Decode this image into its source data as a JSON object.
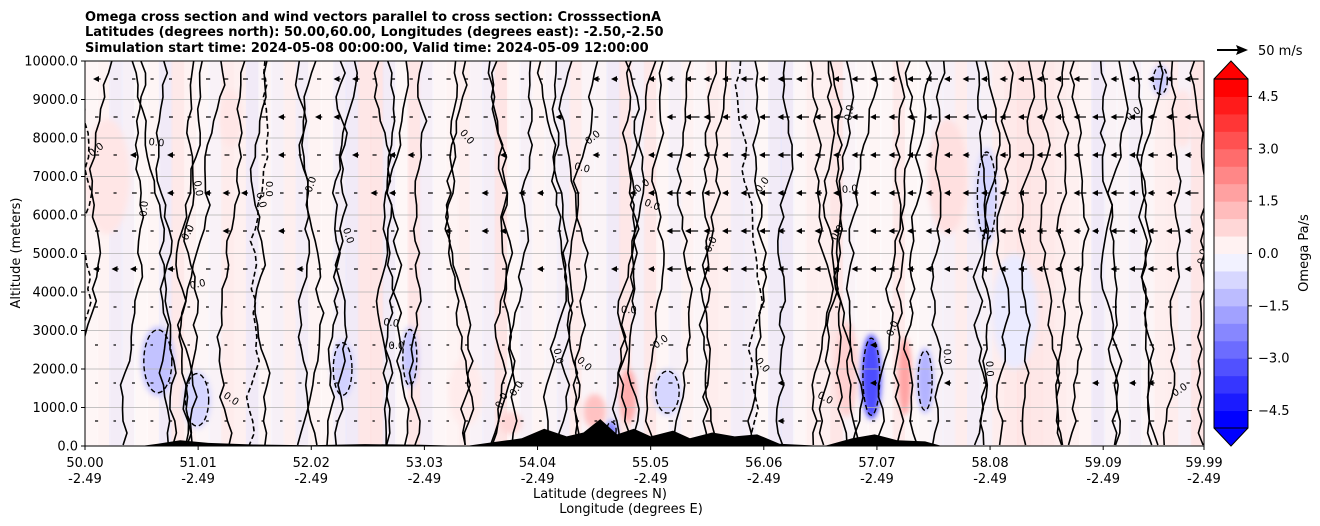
{
  "chart_data": {
    "type": "contourf",
    "title_lines": [
      "Omega cross section and wind vectors parallel to cross section: CrosssectionA",
      "Latitudes (degrees north): 50.00,60.00, Longitudes (degrees east): -2.50,-2.50",
      "Simulation start time: 2024-05-08 00:00:00, Valid time: 2024-05-09 12:00:00"
    ],
    "xlabel_lines": [
      "Latitude (degrees N)",
      "Longitude (degrees E)"
    ],
    "ylabel": "Altitude (meters)",
    "xlim": [
      50.0,
      59.99
    ],
    "ylim": [
      0,
      10000
    ],
    "x_ticks": [
      {
        "lat": "50.00",
        "lon": "-2.49",
        "pos": 50.0
      },
      {
        "lat": "51.01",
        "lon": "-2.49",
        "pos": 51.01
      },
      {
        "lat": "52.02",
        "lon": "-2.49",
        "pos": 52.02
      },
      {
        "lat": "53.03",
        "lon": "-2.49",
        "pos": 53.03
      },
      {
        "lat": "54.04",
        "lon": "-2.49",
        "pos": 54.04
      },
      {
        "lat": "55.05",
        "lon": "-2.49",
        "pos": 55.05
      },
      {
        "lat": "56.06",
        "lon": "-2.49",
        "pos": 56.06
      },
      {
        "lat": "57.07",
        "lon": "-2.49",
        "pos": 57.07
      },
      {
        "lat": "58.08",
        "lon": "-2.49",
        "pos": 58.08
      },
      {
        "lat": "59.09",
        "lon": "-2.49",
        "pos": 59.09
      },
      {
        "lat": "59.99",
        "lon": "-2.49",
        "pos": 59.99
      }
    ],
    "y_ticks": [
      {
        "label": "0.0",
        "value": 0
      },
      {
        "label": "1000.0",
        "value": 1000
      },
      {
        "label": "2000.0",
        "value": 2000
      },
      {
        "label": "3000.0",
        "value": 3000
      },
      {
        "label": "4000.0",
        "value": 4000
      },
      {
        "label": "5000.0",
        "value": 5000
      },
      {
        "label": "6000.0",
        "value": 6000
      },
      {
        "label": "7000.0",
        "value": 7000
      },
      {
        "label": "8000.0",
        "value": 8000
      },
      {
        "label": "9000.0",
        "value": 9000
      },
      {
        "label": "10000.0",
        "value": 10000
      }
    ],
    "colorbar": {
      "label": "Omega Pa/s",
      "range": [
        -5.0,
        5.0
      ],
      "levels": 20,
      "ticks": [
        {
          "label": "4.5",
          "value": 4.5
        },
        {
          "label": "3.0",
          "value": 3.0
        },
        {
          "label": "1.5",
          "value": 1.5
        },
        {
          "label": "0.0",
          "value": 0.0
        },
        {
          "label": "−1.5",
          "value": -1.5
        },
        {
          "label": "−3.0",
          "value": -3.0
        },
        {
          "label": "−4.5",
          "value": -4.5
        }
      ],
      "cmap": "bwr",
      "low_color": "#0000ff",
      "high_color": "#ff0000"
    },
    "quiver_key": {
      "label": "50 m/s"
    },
    "contour_label": "0.0",
    "omega_anomalies": [
      {
        "lat": 50.2,
        "alt": 7000,
        "w": 0.4,
        "h": 3000,
        "val": 0.5
      },
      {
        "lat": 50.65,
        "alt": 2200,
        "w": 0.3,
        "h": 1800,
        "val": -1.2
      },
      {
        "lat": 51.0,
        "alt": 1200,
        "w": 0.25,
        "h": 1500,
        "val": -0.8
      },
      {
        "lat": 51.3,
        "alt": 8500,
        "w": 0.2,
        "h": 1500,
        "val": 0.5
      },
      {
        "lat": 52.3,
        "alt": 2000,
        "w": 0.2,
        "h": 1500,
        "val": -0.9
      },
      {
        "lat": 52.9,
        "alt": 2300,
        "w": 0.15,
        "h": 1600,
        "val": -1.1
      },
      {
        "lat": 53.4,
        "alt": 1400,
        "w": 0.3,
        "h": 1800,
        "val": 0.4
      },
      {
        "lat": 53.8,
        "alt": 600,
        "w": 0.2,
        "h": 600,
        "val": 0.8
      },
      {
        "lat": 54.55,
        "alt": 900,
        "w": 0.2,
        "h": 900,
        "val": 1.2
      },
      {
        "lat": 54.7,
        "alt": 400,
        "w": 0.1,
        "h": 500,
        "val": -2.5
      },
      {
        "lat": 54.85,
        "alt": 1300,
        "w": 0.15,
        "h": 1400,
        "val": 1.6
      },
      {
        "lat": 55.2,
        "alt": 1400,
        "w": 0.25,
        "h": 1200,
        "val": -0.8
      },
      {
        "lat": 56.8,
        "alt": 2000,
        "w": 0.2,
        "h": 2500,
        "val": 0.9
      },
      {
        "lat": 57.02,
        "alt": 1800,
        "w": 0.18,
        "h": 2200,
        "val": -3.5
      },
      {
        "lat": 57.32,
        "alt": 1800,
        "w": 0.12,
        "h": 2000,
        "val": 1.8
      },
      {
        "lat": 57.5,
        "alt": 1700,
        "w": 0.15,
        "h": 1700,
        "val": -1.5
      },
      {
        "lat": 57.7,
        "alt": 7000,
        "w": 0.35,
        "h": 3000,
        "val": 0.6
      },
      {
        "lat": 58.05,
        "alt": 6500,
        "w": 0.2,
        "h": 2500,
        "val": -0.8
      },
      {
        "lat": 58.3,
        "alt": 3500,
        "w": 0.4,
        "h": 3000,
        "val": -0.4
      },
      {
        "lat": 59.6,
        "alt": 9500,
        "w": 0.15,
        "h": 800,
        "val": -1.0
      },
      {
        "lat": 59.8,
        "alt": 8500,
        "w": 0.2,
        "h": 1500,
        "val": 0.5
      }
    ],
    "topography": [
      {
        "lat": 50.0,
        "alt": 0
      },
      {
        "lat": 50.5,
        "alt": 0
      },
      {
        "lat": 50.65,
        "alt": 60
      },
      {
        "lat": 50.85,
        "alt": 150
      },
      {
        "lat": 51.1,
        "alt": 80
      },
      {
        "lat": 51.5,
        "alt": 40
      },
      {
        "lat": 52.0,
        "alt": 20
      },
      {
        "lat": 52.5,
        "alt": 50
      },
      {
        "lat": 53.0,
        "alt": 30
      },
      {
        "lat": 53.4,
        "alt": 0
      },
      {
        "lat": 53.6,
        "alt": 80
      },
      {
        "lat": 53.9,
        "alt": 200
      },
      {
        "lat": 54.1,
        "alt": 450
      },
      {
        "lat": 54.3,
        "alt": 250
      },
      {
        "lat": 54.45,
        "alt": 350
      },
      {
        "lat": 54.6,
        "alt": 700
      },
      {
        "lat": 54.75,
        "alt": 300
      },
      {
        "lat": 54.9,
        "alt": 450
      },
      {
        "lat": 55.05,
        "alt": 250
      },
      {
        "lat": 55.25,
        "alt": 400
      },
      {
        "lat": 55.4,
        "alt": 200
      },
      {
        "lat": 55.6,
        "alt": 350
      },
      {
        "lat": 55.8,
        "alt": 250
      },
      {
        "lat": 56.0,
        "alt": 300
      },
      {
        "lat": 56.2,
        "alt": 60
      },
      {
        "lat": 56.6,
        "alt": 0
      },
      {
        "lat": 56.85,
        "alt": 200
      },
      {
        "lat": 57.05,
        "alt": 300
      },
      {
        "lat": 57.25,
        "alt": 150
      },
      {
        "lat": 57.5,
        "alt": 120
      },
      {
        "lat": 57.65,
        "alt": 0
      },
      {
        "lat": 59.99,
        "alt": 0
      }
    ]
  }
}
